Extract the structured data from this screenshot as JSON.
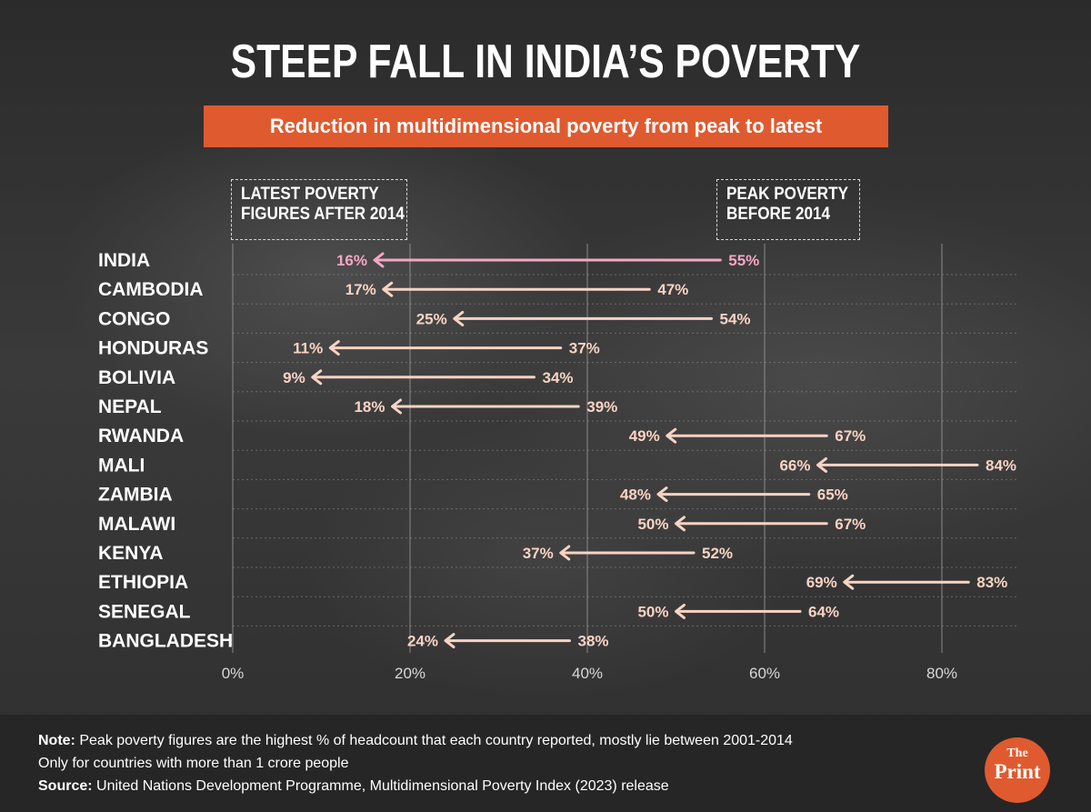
{
  "header": {
    "title": "STEEP FALL IN INDIA’S POVERTY",
    "subtitle": "Reduction in multidimensional poverty from peak to latest"
  },
  "legend": {
    "latest_line1": "LATEST POVERTY",
    "latest_line2": "FIGURES AFTER 2014",
    "peak_line1": "PEAK POVERTY",
    "peak_line2": "BEFORE 2014"
  },
  "colors": {
    "highlight": "#f4a6c4",
    "normal": "#f8d3c3",
    "accent": "#e05a2f"
  },
  "chart_data": {
    "type": "dumbbell-arrow",
    "title": "STEEP FALL IN INDIA’S POVERTY",
    "subtitle": "Reduction in multidimensional poverty from peak to latest",
    "xlabel": "",
    "ylabel": "",
    "xlim": [
      0,
      90
    ],
    "xticks": [
      0,
      20,
      40,
      60,
      80
    ],
    "xtick_labels": [
      "0%",
      "20%",
      "40%",
      "60%",
      "80%"
    ],
    "unit": "%",
    "highlight": "INDIA",
    "series_names": [
      "Peak poverty before 2014",
      "Latest poverty figures after 2014"
    ],
    "categories": [
      "INDIA",
      "CAMBODIA",
      "CONGO",
      "HONDURAS",
      "BOLIVIA",
      "NEPAL",
      "RWANDA",
      "MALI",
      "ZAMBIA",
      "MALAWI",
      "KENYA",
      "ETHIOPIA",
      "SENEGAL",
      "BANGLADESH"
    ],
    "peak": [
      55,
      47,
      54,
      37,
      34,
      39,
      67,
      84,
      65,
      67,
      52,
      83,
      64,
      38
    ],
    "latest": [
      16,
      17,
      25,
      11,
      9,
      18,
      49,
      66,
      48,
      50,
      37,
      69,
      50,
      24
    ]
  },
  "footer": {
    "note_label": "Note:",
    "note_text": "Peak poverty figures are the highest % of headcount that each country reported, mostly lie between 2001-2014",
    "note_line2": "Only for countries with more than 1 crore people",
    "source_label": "Source:",
    "source_text": "United Nations Development Programme, Multidimensional Poverty Index (2023) release"
  },
  "logo": {
    "line1": "The",
    "line2": "Print"
  }
}
